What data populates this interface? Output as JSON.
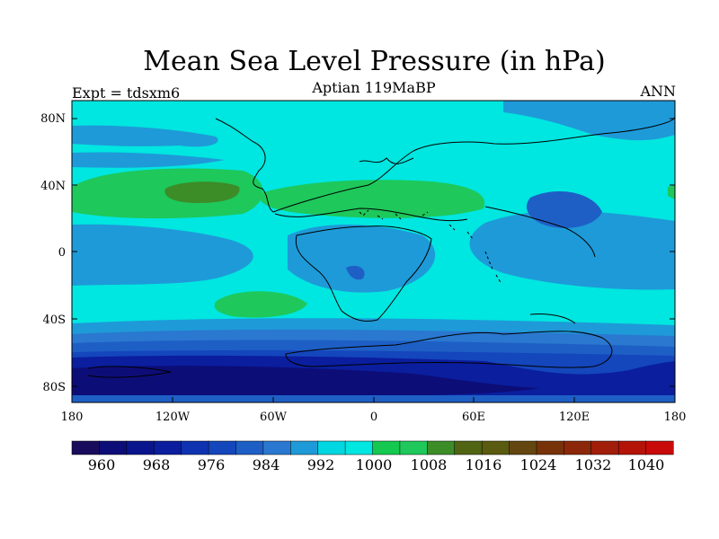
{
  "title": "Mean Sea Level Pressure (in hPa)",
  "subtitle": "Aptian   119MaBP",
  "experiment_label": "Expt = tdsxm6",
  "period_label": "ANN",
  "lat_ticks": [
    "80N",
    "40N",
    "0",
    "40S",
    "80S"
  ],
  "lon_ticks": [
    "180",
    "120W",
    "60W",
    "0",
    "60E",
    "120E",
    "180"
  ],
  "colorbar": {
    "labels": [
      "960",
      "968",
      "976",
      "984",
      "992",
      "1000",
      "1008",
      "1016",
      "1024",
      "1032",
      "1040"
    ],
    "colors": [
      "#1a0c5c",
      "#0d0d78",
      "#0a148c",
      "#0a1e9e",
      "#0f32b0",
      "#1446bc",
      "#1e5fc6",
      "#2a78cf",
      "#1e9ad8",
      "#00d7e0",
      "#00e6e0",
      "#14c850",
      "#1ec85a",
      "#3c8c28",
      "#506414",
      "#5a5a10",
      "#644610",
      "#78320a",
      "#8c280a",
      "#a01e0a",
      "#b41408",
      "#c80a0a"
    ],
    "value_range": [
      956,
      1044
    ]
  },
  "colors": {
    "ocean_base": "#00e6e0",
    "low_pressure": "#1e78c8",
    "deep_low": "#0a1e9e",
    "high_pressure": "#1ec85a",
    "very_high": "#3c8c28"
  }
}
